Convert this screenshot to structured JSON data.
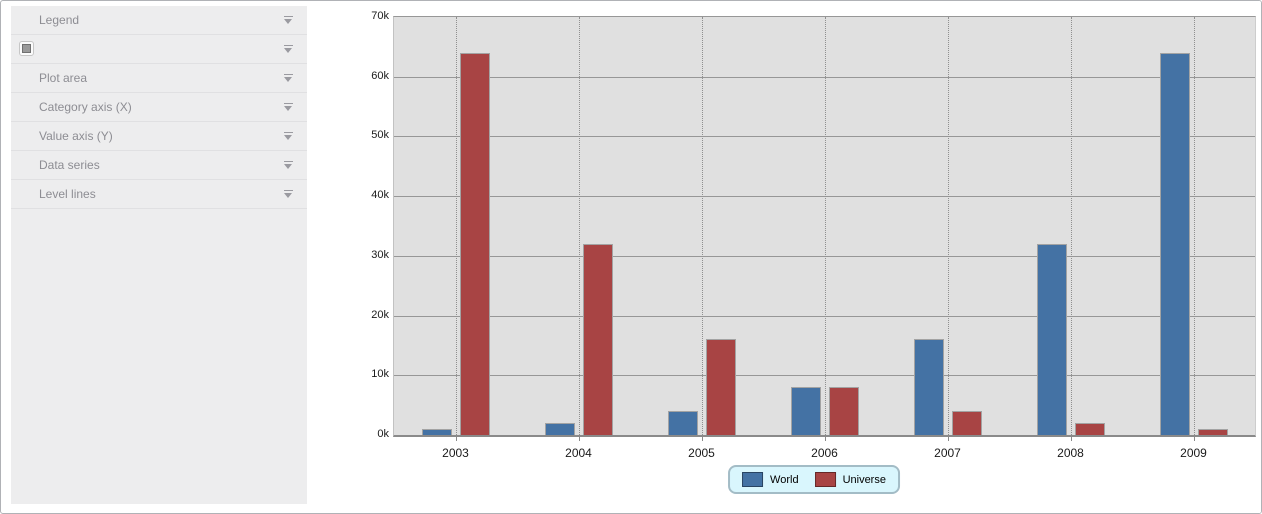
{
  "sidebar": {
    "items": [
      {
        "label": "Legend",
        "checkbox": false
      },
      {
        "label": "",
        "checkbox": true
      },
      {
        "label": "Plot area",
        "checkbox": false
      },
      {
        "label": "Category axis (X)",
        "checkbox": false
      },
      {
        "label": "Value axis (Y)",
        "checkbox": false
      },
      {
        "label": "Data series",
        "checkbox": false
      },
      {
        "label": "Level lines",
        "checkbox": false
      }
    ]
  },
  "chart_data": {
    "type": "bar",
    "title": "",
    "xlabel": "",
    "ylabel": "",
    "categories": [
      "2003",
      "2004",
      "2005",
      "2006",
      "2007",
      "2008",
      "2009"
    ],
    "series": [
      {
        "name": "World",
        "color": "#4472a4",
        "values": [
          1000,
          2000,
          4000,
          8000,
          16000,
          32000,
          64000
        ]
      },
      {
        "name": "Universe",
        "color": "#a84444",
        "values": [
          64000,
          32000,
          16000,
          8000,
          4000,
          2000,
          1000
        ]
      }
    ],
    "y_axis": {
      "min": 0,
      "max": 70000,
      "step": 10000,
      "tick_labels": [
        "0k",
        "10k",
        "20k",
        "30k",
        "40k",
        "50k",
        "60k",
        "70k"
      ]
    },
    "grid": {
      "horizontal": "solid",
      "vertical": "dotted"
    },
    "legend": {
      "position": "bottom",
      "entries": [
        "World",
        "Universe"
      ]
    }
  },
  "colors": {
    "plot_bg": "#e0e0e0",
    "grid_line": "#979797",
    "bar_border": "#a3a3a3",
    "world": "#4472a4",
    "universe": "#a84444",
    "legend_bg": "#d9f6fd",
    "legend_border": "#a3bcc6",
    "sidebar_bg": "#ededee",
    "sidebar_text": "#8d8d93"
  }
}
